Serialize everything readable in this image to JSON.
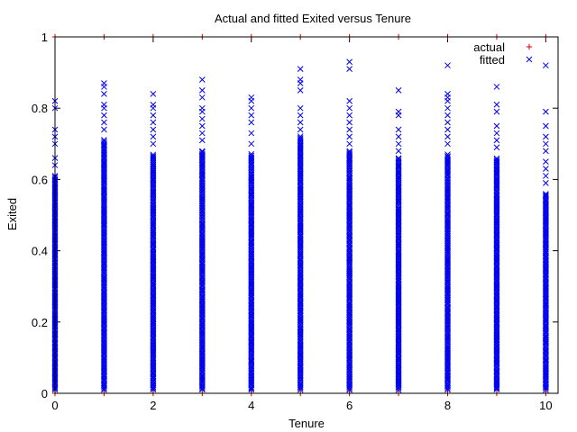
{
  "chart_data": {
    "type": "scatter",
    "title": "Actual and fitted Exited versus Tenure",
    "xlabel": "Tenure",
    "ylabel": "Exited",
    "xlim": [
      0,
      10.25
    ],
    "ylim": [
      0,
      1
    ],
    "x_ticks": [
      "0",
      "2",
      "4",
      "6",
      "8",
      "10"
    ],
    "y_ticks": [
      "0",
      "0.2",
      "0.4",
      "0.6",
      "0.8",
      "1"
    ],
    "legend_position": "top-right",
    "grid": false,
    "series": [
      {
        "name": "actual",
        "marker": "plus",
        "color": "#cc0000",
        "points": [
          {
            "x": 0,
            "y": 1
          },
          {
            "x": 1,
            "y": 1
          },
          {
            "x": 2,
            "y": 1
          },
          {
            "x": 3,
            "y": 1
          },
          {
            "x": 4,
            "y": 1
          },
          {
            "x": 5,
            "y": 1
          },
          {
            "x": 6,
            "y": 1
          },
          {
            "x": 7,
            "y": 1
          },
          {
            "x": 8,
            "y": 1
          },
          {
            "x": 9,
            "y": 1
          },
          {
            "x": 10,
            "y": 1
          },
          {
            "x": 0,
            "y": 0
          },
          {
            "x": 1,
            "y": 0
          },
          {
            "x": 2,
            "y": 0
          },
          {
            "x": 3,
            "y": 0
          },
          {
            "x": 4,
            "y": 0
          },
          {
            "x": 5,
            "y": 0
          },
          {
            "x": 6,
            "y": 0
          },
          {
            "x": 7,
            "y": 0
          },
          {
            "x": 8,
            "y": 0
          },
          {
            "x": 9,
            "y": 0
          },
          {
            "x": 10,
            "y": 0
          }
        ]
      },
      {
        "name": "fitted",
        "marker": "cross",
        "color": "#0000ee",
        "columns": [
          {
            "x": 0,
            "range": [
              0.01,
              0.61
            ],
            "outliers": [
              0.82,
              0.8,
              0.74,
              0.72,
              0.7,
              0.66,
              0.64
            ]
          },
          {
            "x": 1,
            "range": [
              0.01,
              0.71
            ],
            "outliers": [
              0.87,
              0.86,
              0.84,
              0.81,
              0.8,
              0.78,
              0.76,
              0.74
            ]
          },
          {
            "x": 2,
            "range": [
              0.01,
              0.67
            ],
            "outliers": [
              0.84,
              0.81,
              0.8,
              0.78,
              0.76,
              0.74,
              0.72,
              0.7
            ]
          },
          {
            "x": 3,
            "range": [
              0.01,
              0.68
            ],
            "outliers": [
              0.88,
              0.85,
              0.83,
              0.8,
              0.79,
              0.77,
              0.75,
              0.73,
              0.71
            ]
          },
          {
            "x": 4,
            "range": [
              0.01,
              0.67
            ],
            "outliers": [
              0.83,
              0.82,
              0.8,
              0.78,
              0.76,
              0.73,
              0.7
            ]
          },
          {
            "x": 5,
            "range": [
              0.01,
              0.72
            ],
            "outliers": [
              0.91,
              0.88,
              0.87,
              0.85,
              0.8,
              0.78,
              0.76,
              0.74
            ]
          },
          {
            "x": 6,
            "range": [
              0.01,
              0.68
            ],
            "outliers": [
              0.93,
              0.91,
              0.82,
              0.8,
              0.78,
              0.76,
              0.74,
              0.72,
              0.7
            ]
          },
          {
            "x": 7,
            "range": [
              0.01,
              0.66
            ],
            "outliers": [
              0.85,
              0.79,
              0.78,
              0.74,
              0.72,
              0.7,
              0.68
            ]
          },
          {
            "x": 8,
            "range": [
              0.01,
              0.67
            ],
            "outliers": [
              0.92,
              0.84,
              0.83,
              0.82,
              0.8,
              0.78,
              0.76,
              0.74,
              0.72,
              0.7
            ]
          },
          {
            "x": 9,
            "range": [
              0.01,
              0.66
            ],
            "outliers": [
              0.86,
              0.81,
              0.79,
              0.75,
              0.73,
              0.71,
              0.69
            ]
          },
          {
            "x": 10,
            "range": [
              0.01,
              0.56
            ],
            "outliers": [
              0.92,
              0.79,
              0.75,
              0.72,
              0.7,
              0.68,
              0.65,
              0.63,
              0.61,
              0.59
            ]
          }
        ]
      }
    ]
  }
}
